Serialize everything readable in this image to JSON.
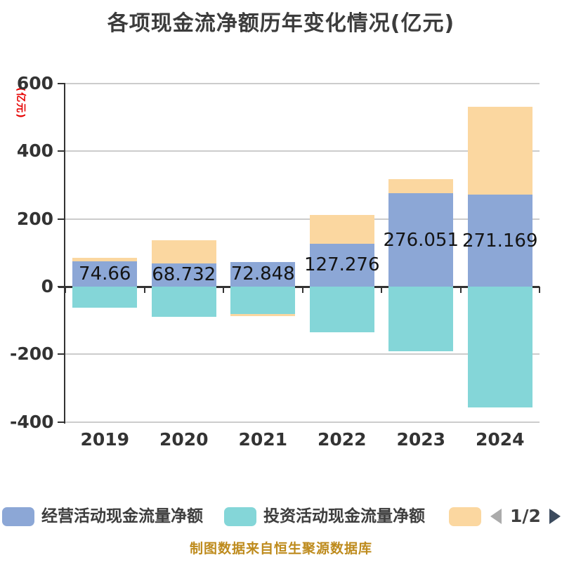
{
  "title": "各项现金流净额历年变化情况(亿元)",
  "y_axis": {
    "unit_label": "(亿元)",
    "unit_color": "#E60000"
  },
  "legend": {
    "items": [
      {
        "label": "经营活动现金流量净额",
        "color": "#8CA7D6"
      },
      {
        "label": "投资活动现金流量净额",
        "color": "#84D6D8"
      },
      {
        "label": "",
        "color": "#FBD7A0"
      }
    ],
    "pagination": {
      "text": "1/2"
    }
  },
  "source_note": "制图数据来自恒生聚源数据库",
  "colors": {
    "axis": "#333333",
    "gridline": "#CCCCCC",
    "bar_label": "#141414",
    "pager_prev": "#ABABAB",
    "pager_next": "#3C4B5E"
  },
  "chart_data": {
    "type": "bar",
    "stacked": true,
    "title": "各项现金流净额历年变化情况(亿元)",
    "ylabel": "(亿元)",
    "categories": [
      "2019",
      "2020",
      "2021",
      "2022",
      "2023",
      "2024"
    ],
    "series": [
      {
        "name": "经营活动现金流量净额",
        "color": "#8CA7D6",
        "values": [
          74.66,
          68.732,
          72.848,
          127.276,
          276.051,
          271.169
        ],
        "data_labels": [
          "74.66",
          "68.732",
          "72.848",
          "127.276",
          "276.051",
          "271.169"
        ]
      },
      {
        "name": "投资活动现金流量净额",
        "color": "#84D6D8",
        "values": [
          -62,
          -90,
          -80,
          -135,
          -191,
          -357
        ]
      },
      {
        "name": "",
        "color": "#FBD7A0",
        "values": [
          10,
          69,
          -8,
          85,
          42,
          260
        ]
      }
    ],
    "ylim": [
      -400,
      600
    ],
    "y_ticks": [
      600,
      400,
      200,
      0,
      -200,
      -400
    ],
    "grid": true,
    "legend_position": "bottom"
  }
}
